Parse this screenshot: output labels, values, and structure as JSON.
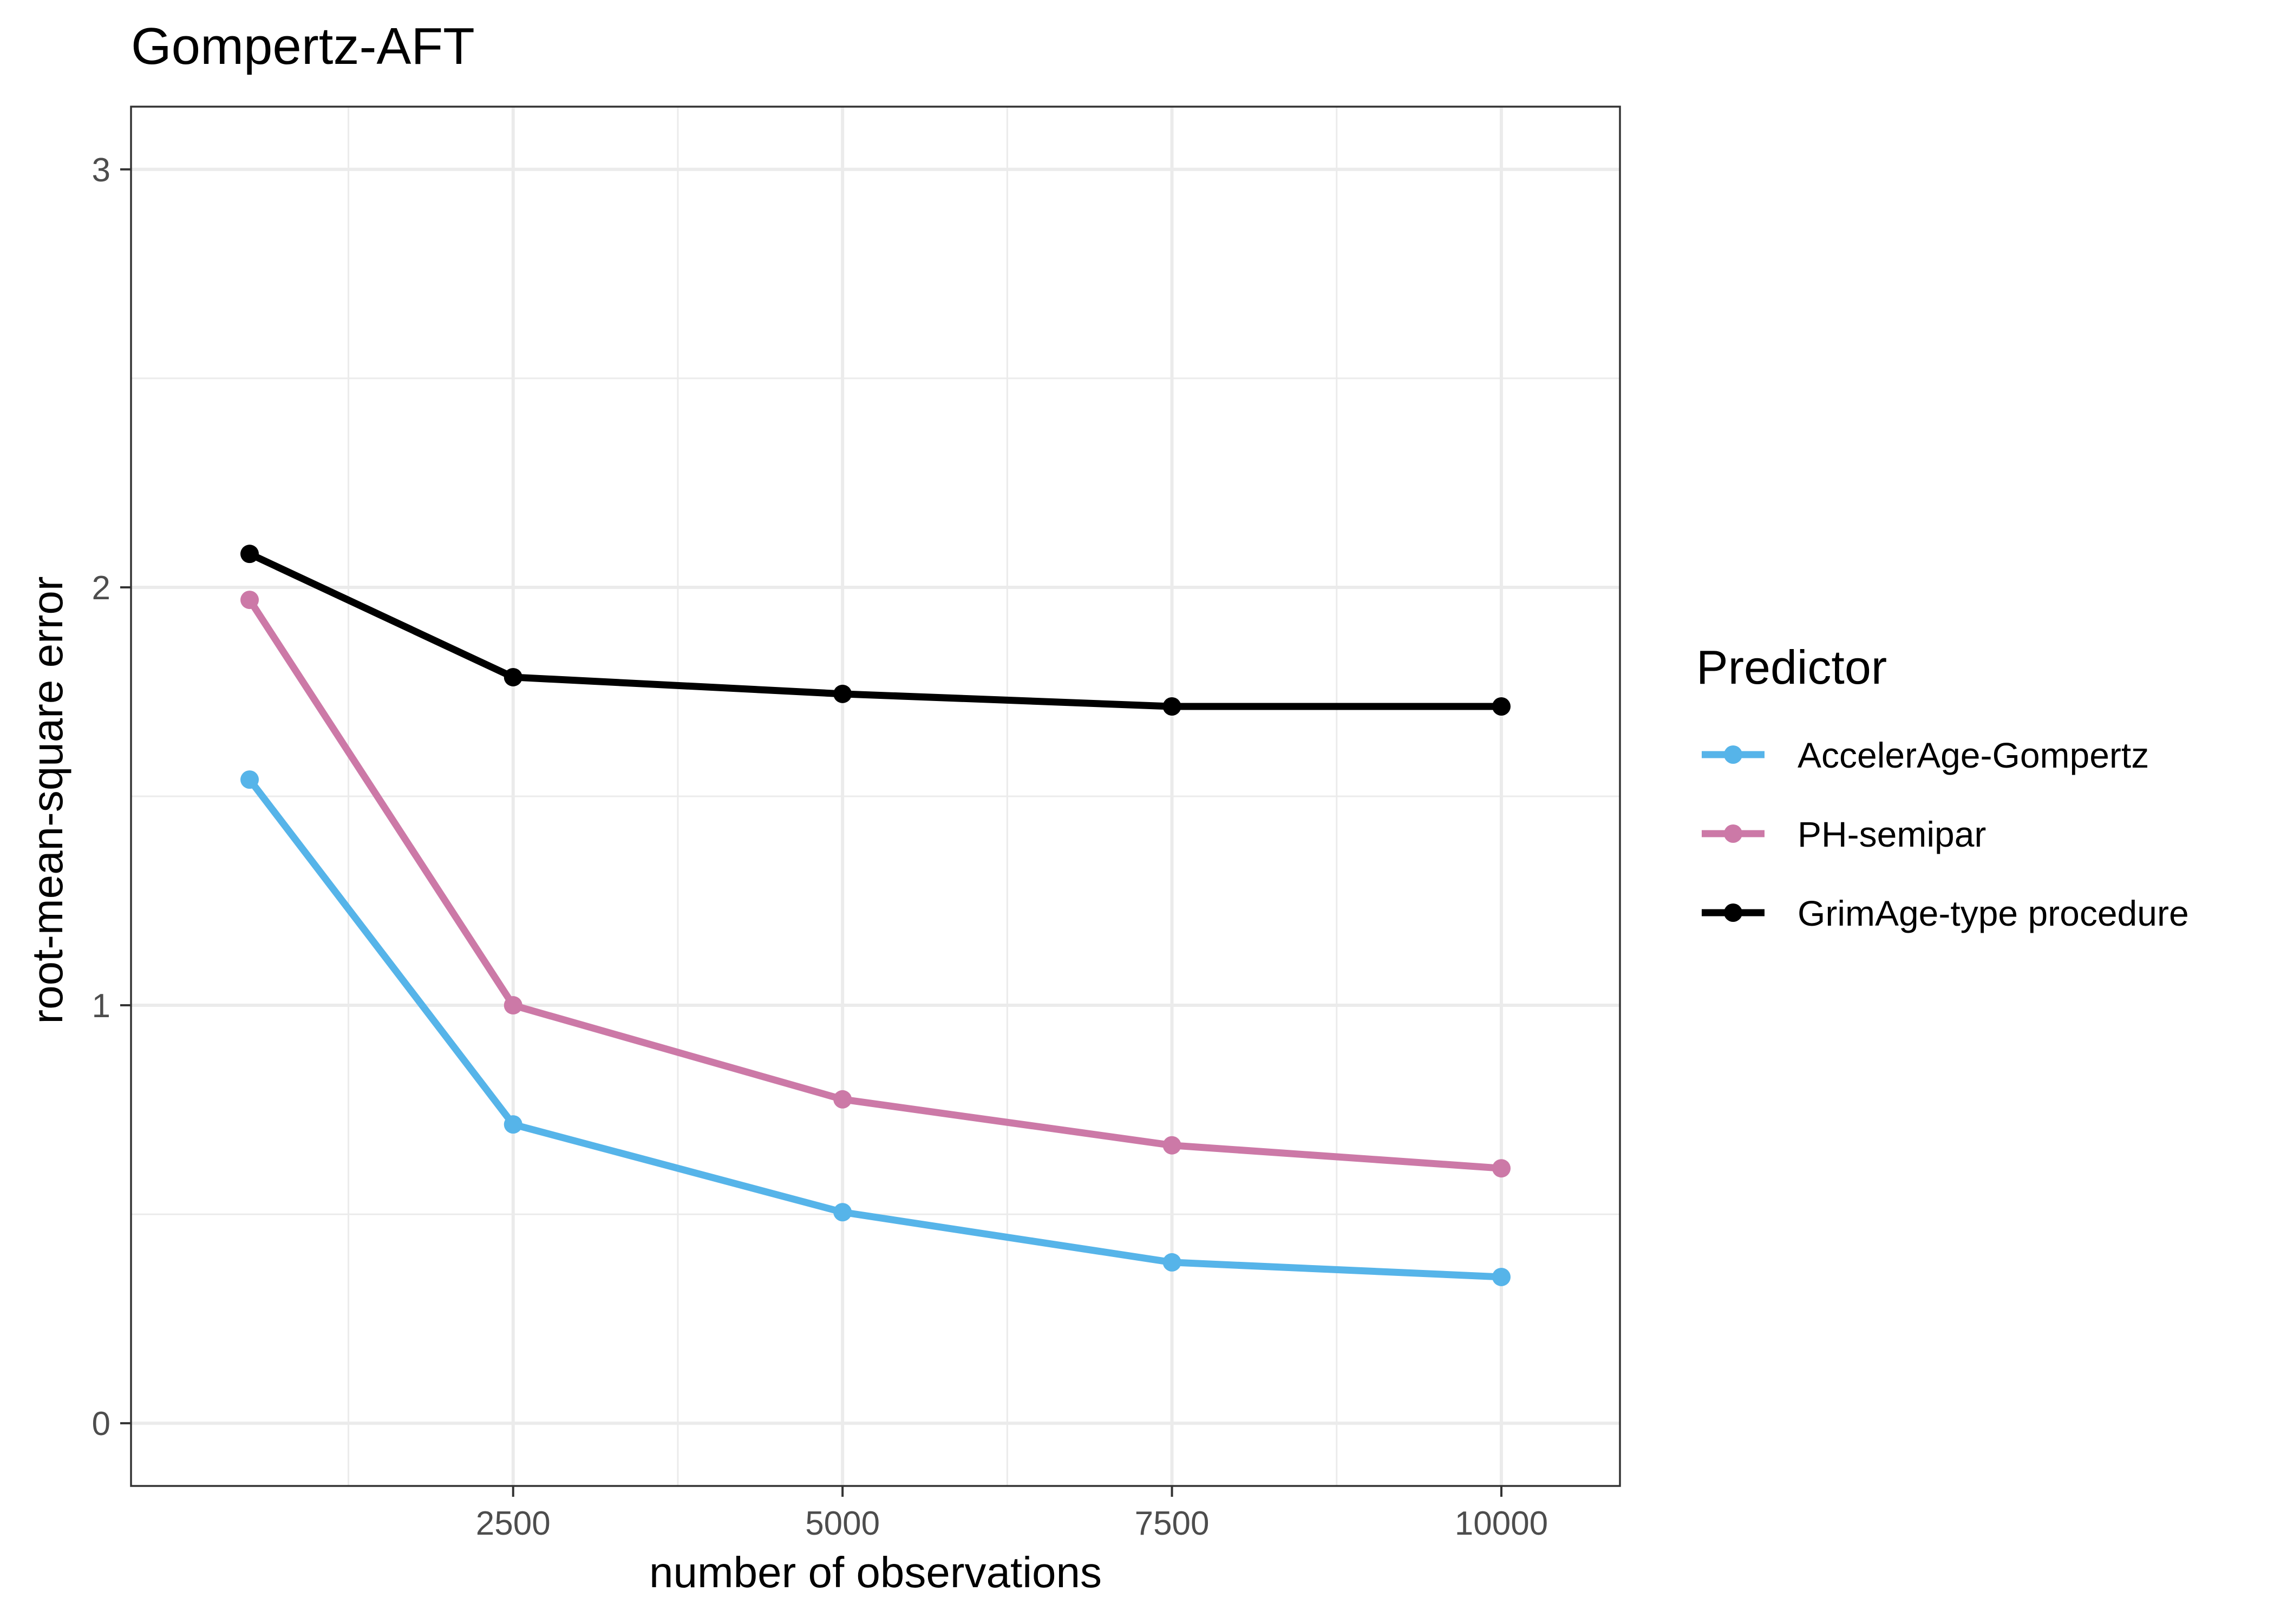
{
  "chart_data": {
    "type": "line",
    "title": "Gompertz-AFT",
    "xlabel": "number of observations",
    "ylabel": "root-mean-square error",
    "xlim": [
      -400,
      10900
    ],
    "ylim": [
      -0.15,
      3.15
    ],
    "x_ticks": [
      2500,
      5000,
      7500,
      10000
    ],
    "x_tick_labels": [
      "2500",
      "5000",
      "7500",
      "10000"
    ],
    "y_ticks": [
      0,
      1,
      2,
      3
    ],
    "y_tick_labels": [
      "0",
      "1",
      "2",
      "3"
    ],
    "grid": true,
    "legend": {
      "title": "Predictor",
      "placement": "right"
    },
    "x": [
      500,
      2500,
      5000,
      7500,
      10000
    ],
    "series": [
      {
        "name": "AccelerAge-Gompertz",
        "color": "#56B4E9",
        "values": [
          1.54,
          0.715,
          0.505,
          0.385,
          0.35
        ]
      },
      {
        "name": "PH-semipar",
        "color": "#CC79A7",
        "values": [
          1.97,
          1.0,
          0.775,
          0.665,
          0.61
        ]
      },
      {
        "name": "GrimAge-type procedure",
        "color": "#000000",
        "values": [
          2.08,
          1.785,
          1.745,
          1.715,
          1.715
        ]
      }
    ]
  }
}
